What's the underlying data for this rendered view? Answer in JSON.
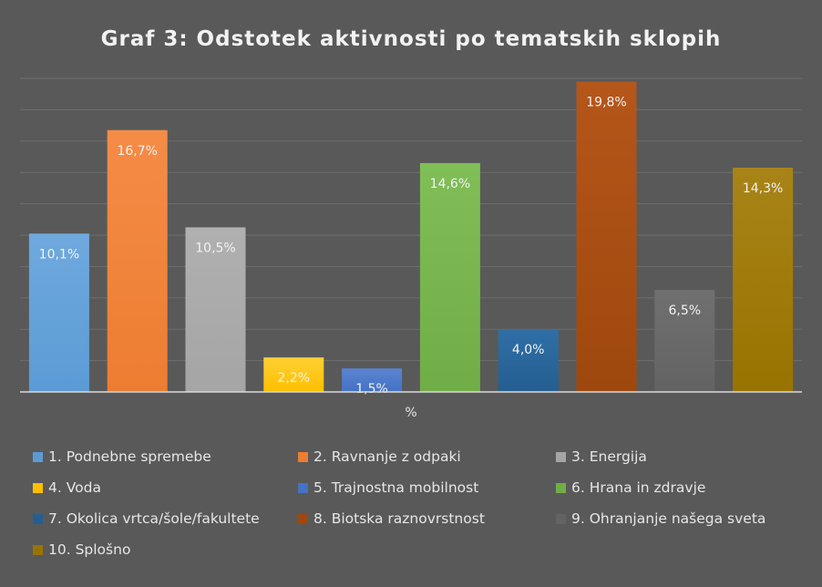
{
  "chart_data": {
    "type": "bar",
    "title": "Graf 3: Odstotek aktivnosti po tematskih sklopih",
    "xlabel": "%",
    "ylabel": "",
    "ylim": [
      0,
      20
    ],
    "grid": true,
    "legend": "bottom",
    "categories": [
      "1. Podnebne spremebe",
      "2. Ravnanje z odpaki",
      "3. Energija",
      "4. Voda",
      "5. Trajnostna mobilnost",
      "6. Hrana in zdravje",
      "7. Okolica vrtca/šole/fakultete",
      "8. Biotska raznovrstnost",
      "9. Ohranjanje našega sveta",
      "10. Splošno"
    ],
    "values": [
      10.1,
      16.7,
      10.5,
      2.2,
      1.5,
      14.6,
      4.0,
      19.8,
      6.5,
      14.3
    ],
    "data_labels": [
      "10,1%",
      "16,7%",
      "10,5%",
      "2,2%",
      "1,5%",
      "14,6%",
      "4,0%",
      "19,8%",
      "6,5%",
      "14,3%"
    ],
    "colors": [
      "#5b9bd5",
      "#ed7d31",
      "#a5a5a5",
      "#ffc000",
      "#4472c4",
      "#70ad47",
      "#255e91",
      "#9e480e",
      "#636363",
      "#997300"
    ],
    "colors_light": [
      "#6fa9de",
      "#f48c47",
      "#b0b0b0",
      "#ffcf33",
      "#5a84d0",
      "#80be57",
      "#2f6fa6",
      "#b5561a",
      "#707070",
      "#a88418"
    ]
  }
}
